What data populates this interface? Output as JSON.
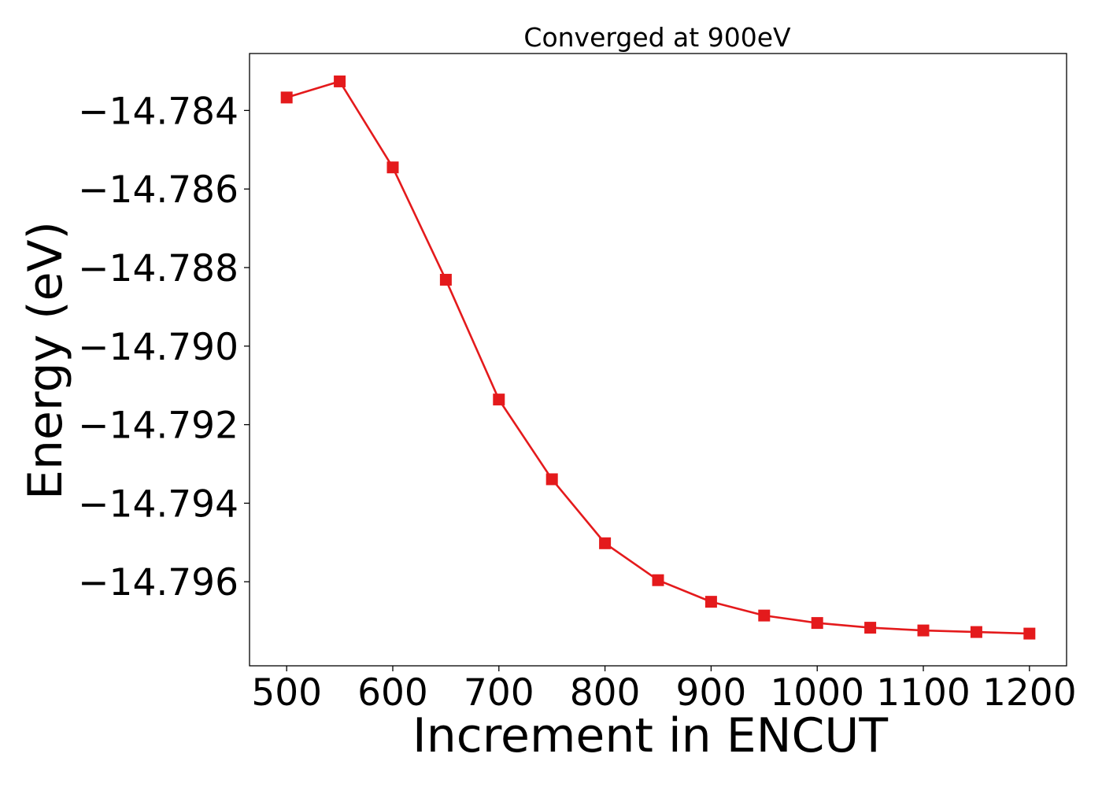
{
  "chart_data": {
    "type": "line",
    "title": "Converged at 900eV",
    "xlabel": "Increment in ENCUT",
    "ylabel": "Energy (eV)",
    "xlim": [
      465,
      1235
    ],
    "ylim": [
      -14.79814,
      -14.78255
    ],
    "x_ticks": [
      500,
      600,
      700,
      800,
      900,
      1000,
      1100,
      1200
    ],
    "y_ticks": [
      -14.784,
      -14.786,
      -14.788,
      -14.79,
      -14.792,
      -14.794,
      -14.796
    ],
    "y_tick_labels": [
      "−14.784",
      "−14.786",
      "−14.788",
      "−14.790",
      "−14.792",
      "−14.794",
      "−14.796"
    ],
    "grid": false,
    "series": [
      {
        "color": "#e41a1c",
        "marker": "square",
        "x": [
          500,
          550,
          600,
          650,
          700,
          750,
          800,
          850,
          900,
          950,
          1000,
          1050,
          1100,
          1150,
          1200
        ],
        "y": [
          -14.78367,
          -14.78326,
          -14.78545,
          -14.78831,
          -14.79136,
          -14.79339,
          -14.79502,
          -14.79596,
          -14.79651,
          -14.79686,
          -14.79705,
          -14.79717,
          -14.79724,
          -14.79728,
          -14.79732
        ]
      }
    ]
  }
}
